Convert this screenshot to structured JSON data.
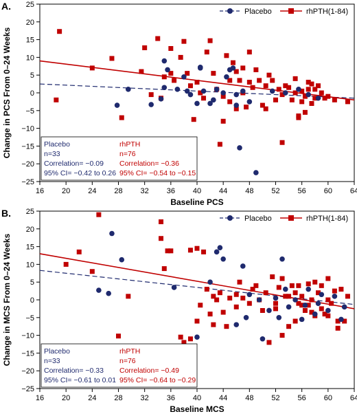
{
  "colors": {
    "placebo": "#1f2a6e",
    "rhpth": "#c00000"
  },
  "chart_data": [
    {
      "panel_label": "A.",
      "type": "scatter",
      "xlabel": "Baseline PCS",
      "ylabel": "Change in PCS From 0–24 Weeks",
      "xlim": [
        16,
        64
      ],
      "ylim": [
        -25,
        25
      ],
      "xticks": [
        16,
        20,
        24,
        28,
        32,
        36,
        40,
        44,
        48,
        52,
        56,
        60,
        64
      ],
      "yticks": [
        -25,
        -20,
        -15,
        -10,
        -5,
        0,
        5,
        10,
        15,
        20,
        25
      ],
      "tick_labels_x": [
        "16",
        "20",
        "24",
        "28",
        "32",
        "36",
        "40",
        "44",
        "48",
        "52",
        "56",
        "60",
        "64"
      ],
      "tick_labels_y": [
        "−25",
        "−20",
        "−15",
        "−10",
        "−5",
        "0",
        "5",
        "10",
        "15",
        "20",
        "25"
      ],
      "legend": {
        "placebo_label": "Placebo",
        "rhpth_label": "rhPTH(1-84)"
      },
      "stats": {
        "placebo": {
          "title": "Placebo",
          "n": "n=33",
          "corr": "Correlation= −0.09",
          "ci": "95% CI= −0.42 to 0.26"
        },
        "rhpth": {
          "title": "rhPTH",
          "n": "n=76",
          "corr": "Correlation= −0.36",
          "ci": "95% CI= −0.54 to −0.15"
        }
      },
      "fit_lines": {
        "placebo": [
          [
            16,
            2.5
          ],
          [
            64,
            -1.5
          ]
        ],
        "rhpth": [
          [
            16,
            9
          ],
          [
            64,
            -2
          ]
        ]
      },
      "series": [
        {
          "name": "Placebo",
          "points": [
            [
              27.8,
              -3.5
            ],
            [
              29.5,
              1
            ],
            [
              33,
              -3.3
            ],
            [
              34.5,
              -1.7
            ],
            [
              35,
              9
            ],
            [
              35,
              1.5
            ],
            [
              35.5,
              6.5
            ],
            [
              37,
              1
            ],
            [
              38,
              4.5
            ],
            [
              38.5,
              0.5
            ],
            [
              39,
              -0.5
            ],
            [
              40,
              -3
            ],
            [
              40.5,
              7.2
            ],
            [
              40.5,
              7
            ],
            [
              41,
              0.5
            ],
            [
              42,
              -3
            ],
            [
              42.5,
              -2
            ],
            [
              43,
              1
            ],
            [
              44,
              0
            ],
            [
              44.5,
              4.5
            ],
            [
              45,
              6.5
            ],
            [
              45.5,
              7
            ],
            [
              46,
              -0.5
            ],
            [
              46,
              -3.5
            ],
            [
              46.5,
              -15.5
            ],
            [
              47,
              0.5
            ],
            [
              48,
              -2.5
            ],
            [
              49,
              -22.5
            ],
            [
              51.5,
              0.5
            ],
            [
              53.5,
              0
            ],
            [
              55.5,
              1
            ],
            [
              57,
              -0.5
            ],
            [
              58.5,
              -1.5
            ]
          ]
        },
        {
          "name": "rhPTH(1-84)",
          "points": [
            [
              18.5,
              -2
            ],
            [
              19,
              17.3
            ],
            [
              24,
              7
            ],
            [
              27,
              9.7
            ],
            [
              28.5,
              -7
            ],
            [
              31.5,
              6
            ],
            [
              32,
              12.7
            ],
            [
              33,
              -0.5
            ],
            [
              34,
              15.3
            ],
            [
              34.5,
              -1.5
            ],
            [
              35,
              4.5
            ],
            [
              36,
              12.5
            ],
            [
              36,
              5.5
            ],
            [
              36.5,
              3.5
            ],
            [
              37.5,
              10
            ],
            [
              38,
              14.5
            ],
            [
              38.5,
              5.5
            ],
            [
              39,
              2
            ],
            [
              39.5,
              -7.5
            ],
            [
              40,
              3
            ],
            [
              40.5,
              0
            ],
            [
              41,
              -1.5
            ],
            [
              41.5,
              11.5
            ],
            [
              42,
              14.7
            ],
            [
              42.5,
              5.5
            ],
            [
              43,
              1
            ],
            [
              43.5,
              -14.5
            ],
            [
              44,
              -8
            ],
            [
              44,
              -1
            ],
            [
              44.5,
              10.5
            ],
            [
              45,
              3.5
            ],
            [
              45,
              -2.5
            ],
            [
              45.5,
              8.5
            ],
            [
              46,
              6
            ],
            [
              46,
              -4.5
            ],
            [
              46.5,
              3.5
            ],
            [
              47,
              7
            ],
            [
              47,
              0
            ],
            [
              47.5,
              -4
            ],
            [
              48,
              11.5
            ],
            [
              48,
              3
            ],
            [
              48.5,
              1.5
            ],
            [
              49,
              6.5
            ],
            [
              49.5,
              3.5
            ],
            [
              50,
              -3.5
            ],
            [
              50.5,
              2
            ],
            [
              51,
              5
            ],
            [
              51.5,
              3.5
            ],
            [
              52,
              -2
            ],
            [
              52.5,
              1
            ],
            [
              53,
              -14
            ],
            [
              53,
              -0.5
            ],
            [
              53.5,
              2
            ],
            [
              54,
              1.5
            ],
            [
              54.5,
              -2
            ],
            [
              55,
              4
            ],
            [
              55,
              0
            ],
            [
              55.5,
              -7
            ],
            [
              55.5,
              -6.5
            ],
            [
              56,
              -2.5
            ],
            [
              56,
              0.5
            ],
            [
              56.5,
              -5.5
            ],
            [
              56.5,
              -1
            ],
            [
              57,
              3
            ],
            [
              57,
              1
            ],
            [
              57.5,
              -3
            ],
            [
              58,
              -1.5
            ],
            [
              58,
              1
            ],
            [
              58.5,
              2
            ],
            [
              59,
              0
            ],
            [
              59.5,
              -1.5
            ],
            [
              60,
              -1
            ],
            [
              61,
              -2
            ],
            [
              63,
              -2.5
            ],
            [
              57.5,
              2.5
            ],
            [
              50.5,
              -4.5
            ]
          ]
        }
      ]
    },
    {
      "panel_label": "B.",
      "type": "scatter",
      "xlabel": "Baseline MCS",
      "ylabel": "Change in MCS From 0–24 Weeks",
      "xlim": [
        16,
        64
      ],
      "ylim": [
        -25,
        25
      ],
      "xticks": [
        16,
        20,
        24,
        28,
        32,
        36,
        40,
        44,
        48,
        52,
        56,
        60,
        64
      ],
      "yticks": [
        -25,
        -20,
        -15,
        -10,
        -5,
        0,
        5,
        10,
        15,
        20,
        25
      ],
      "tick_labels_x": [
        "16",
        "20",
        "24",
        "28",
        "32",
        "36",
        "40",
        "44",
        "48",
        "52",
        "56",
        "60",
        "64"
      ],
      "tick_labels_y": [
        "−25",
        "−20",
        "−15",
        "−10",
        "−5",
        "0",
        "5",
        "10",
        "15",
        "20",
        "25"
      ],
      "legend": {
        "placebo_label": "Placebo",
        "rhpth_label": "rhPTH(1-84)"
      },
      "stats": {
        "placebo": {
          "title": "Placebo",
          "n": "n=33",
          "corr": "Correlation= −0.33",
          "ci": "95% CI= −0.61 to 0.01"
        },
        "rhpth": {
          "title": "rhPTH",
          "n": "n=76",
          "corr": "Correlation= −0.49",
          "ci": "95% CI= −0.64 to −0.29"
        }
      },
      "fit_lines": {
        "placebo": [
          [
            16,
            8.3
          ],
          [
            64,
            -1.3
          ]
        ],
        "rhpth": [
          [
            16,
            13
          ],
          [
            64,
            -2.5
          ]
        ]
      },
      "series": [
        {
          "name": "Placebo",
          "points": [
            [
              25,
              2.7
            ],
            [
              26.5,
              1.8
            ],
            [
              27,
              18.7
            ],
            [
              28.5,
              11.3
            ],
            [
              36.5,
              3.5
            ],
            [
              40,
              -10.5
            ],
            [
              42,
              5
            ],
            [
              43,
              13.5
            ],
            [
              43.5,
              14.7
            ],
            [
              44,
              11.5
            ],
            [
              46,
              -7
            ],
            [
              47,
              9.5
            ],
            [
              47.5,
              -5
            ],
            [
              48,
              1.5
            ],
            [
              49.5,
              0
            ],
            [
              50,
              -11
            ],
            [
              51,
              -3
            ],
            [
              52,
              0.5
            ],
            [
              52.5,
              -5
            ],
            [
              53,
              11.5
            ],
            [
              53.5,
              3
            ],
            [
              54,
              -2
            ],
            [
              55,
              0
            ],
            [
              56,
              -5.5
            ],
            [
              56.5,
              -1.5
            ],
            [
              57,
              3
            ],
            [
              58,
              -4
            ],
            [
              58.5,
              -1
            ],
            [
              59,
              1.5
            ],
            [
              60,
              -3
            ],
            [
              61,
              1
            ],
            [
              62,
              -5.5
            ],
            [
              62.5,
              -2
            ]
          ]
        },
        {
          "name": "rhPTH(1-84)",
          "points": [
            [
              20,
              10
            ],
            [
              22,
              13.5
            ],
            [
              24,
              8
            ],
            [
              25,
              24
            ],
            [
              28,
              -10.2
            ],
            [
              29.5,
              1
            ],
            [
              34.5,
              22
            ],
            [
              34.5,
              17.3
            ],
            [
              35,
              8.8
            ],
            [
              35.5,
              13.8
            ],
            [
              36,
              13.8
            ],
            [
              37.5,
              -10.5
            ],
            [
              38,
              -12
            ],
            [
              39,
              14
            ],
            [
              39,
              -11
            ],
            [
              40,
              14.5
            ],
            [
              40,
              -6
            ],
            [
              41,
              13.5
            ],
            [
              41.5,
              3
            ],
            [
              42,
              -4
            ],
            [
              42.5,
              -7
            ],
            [
              43,
              0
            ],
            [
              43.5,
              2
            ],
            [
              44,
              -3.5
            ],
            [
              45,
              0.5
            ],
            [
              46,
              -2
            ],
            [
              46.5,
              5
            ],
            [
              47,
              0.5
            ],
            [
              48,
              -1
            ],
            [
              49,
              4
            ],
            [
              49.5,
              0
            ],
            [
              50,
              -3
            ],
            [
              50.5,
              2
            ],
            [
              51,
              -12
            ],
            [
              51.5,
              6.5
            ],
            [
              52,
              -1
            ],
            [
              52.5,
              3.5
            ],
            [
              53,
              -10
            ],
            [
              53.5,
              1
            ],
            [
              54,
              -7.5
            ],
            [
              54.5,
              4
            ],
            [
              55,
              -6
            ],
            [
              55,
              2
            ],
            [
              55.5,
              -1
            ],
            [
              56,
              1
            ],
            [
              56.5,
              -3
            ],
            [
              57,
              4.5
            ],
            [
              57,
              -1.5
            ],
            [
              57.5,
              0
            ],
            [
              58,
              -4.5
            ],
            [
              58.5,
              2
            ],
            [
              59,
              -2.5
            ],
            [
              59,
              4
            ],
            [
              59.5,
              -4
            ],
            [
              60,
              0
            ],
            [
              60,
              6
            ],
            [
              60.5,
              -1
            ],
            [
              61,
              2.5
            ],
            [
              61.5,
              -6
            ],
            [
              61.5,
              -8
            ],
            [
              62,
              3
            ],
            [
              62.5,
              -6
            ],
            [
              63,
              1
            ],
            [
              55.5,
              4
            ],
            [
              56,
              -1.5
            ],
            [
              54,
              1
            ],
            [
              52,
              -2.5
            ],
            [
              48.5,
              3
            ],
            [
              46,
              1.5
            ],
            [
              44.5,
              -7.5
            ],
            [
              42.5,
              1
            ],
            [
              40.5,
              -1.5
            ],
            [
              58,
              5
            ],
            [
              60,
              -4.5
            ],
            [
              53,
              6
            ],
            [
              57.5,
              -3.5
            ]
          ]
        }
      ]
    }
  ]
}
